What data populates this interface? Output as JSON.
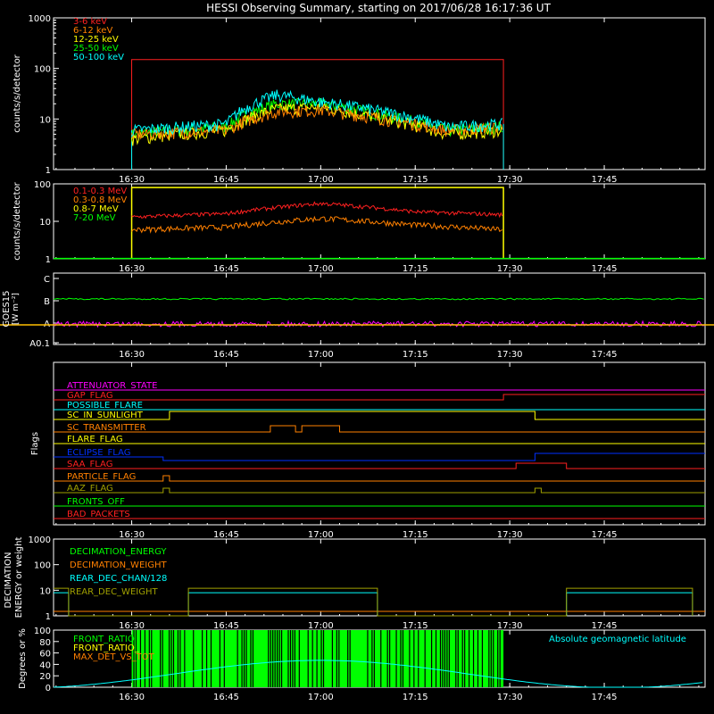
{
  "title": "HESSI Observing Summary, starting on 2017/06/28 16:17:36 UT",
  "time_ticks": [
    "16:30",
    "16:45",
    "17:00",
    "17:15",
    "17:30",
    "17:45"
  ],
  "colors": {
    "red": "#ff2020",
    "orange": "#ff8000",
    "yellow": "#ffff00",
    "green": "#00ff00",
    "cyan": "#00ffff",
    "magenta": "#ff00ff",
    "blue": "#0030ff",
    "olive": "#a0a000",
    "white": "#ffffff"
  },
  "chart_data": [
    {
      "type": "line",
      "panel": "low-energy-rates",
      "ylabel": "counts/s/detector",
      "y_scale": "log",
      "ylim": [
        1,
        1000
      ],
      "y_ticks": [
        "1",
        "10",
        "100",
        "1000"
      ],
      "legend_placement": "top-left",
      "series": [
        {
          "name": "3-6 keV",
          "color": "#ff2020",
          "x": [
            "16:29",
            "16:30",
            "17:00",
            "17:29",
            "17:29"
          ],
          "values": [
            1,
            150,
            150,
            150,
            1
          ]
        },
        {
          "name": "6-12 keV",
          "color": "#ff8000",
          "x": [
            "16:30",
            "16:45",
            "16:53",
            "17:00",
            "17:10",
            "17:20",
            "17:29"
          ],
          "values": [
            5,
            6,
            14,
            15,
            10,
            6,
            7
          ]
        },
        {
          "name": "12-25 keV",
          "color": "#ffff00",
          "x": [
            "16:30",
            "16:45",
            "16:53",
            "17:00",
            "17:10",
            "17:20",
            "17:29"
          ],
          "values": [
            4,
            6,
            16,
            17,
            10,
            5,
            6
          ]
        },
        {
          "name": "25-50 keV",
          "color": "#00ff00",
          "x": [
            "16:30",
            "16:45",
            "16:53",
            "17:00",
            "17:10",
            "17:20",
            "17:29"
          ],
          "values": [
            5,
            7,
            20,
            20,
            12,
            6,
            7
          ]
        },
        {
          "name": "50-100 keV",
          "color": "#00ffff",
          "x": [
            "16:30",
            "16:45",
            "16:53",
            "17:00",
            "17:10",
            "17:20",
            "17:29"
          ],
          "values": [
            6,
            8,
            30,
            22,
            14,
            7,
            8
          ]
        }
      ]
    },
    {
      "type": "line",
      "panel": "high-energy-rates",
      "ylabel": "counts/s/detector",
      "y_scale": "log",
      "ylim": [
        1,
        100
      ],
      "y_ticks": [
        "1",
        "10",
        "100"
      ],
      "legend_placement": "top-left",
      "series": [
        {
          "name": "0.1-0.3 MeV",
          "color": "#ff2020",
          "x": [
            "16:30",
            "16:45",
            "17:00",
            "17:15",
            "17:29"
          ],
          "values": [
            13,
            16,
            30,
            18,
            15
          ]
        },
        {
          "name": "0.3-0.8 MeV",
          "color": "#ff8000",
          "x": [
            "16:30",
            "16:45",
            "17:00",
            "17:15",
            "17:29"
          ],
          "values": [
            6,
            7,
            12,
            8,
            6
          ]
        },
        {
          "name": "0.8-7 MeV",
          "color": "#ffff00",
          "x": [
            "16:29",
            "16:30",
            "17:00",
            "17:29",
            "17:29"
          ],
          "values": [
            1,
            80,
            80,
            80,
            1
          ]
        },
        {
          "name": "7-20 MeV",
          "color": "#00ff00",
          "x": [
            "16:17",
            "18:00"
          ],
          "values": [
            1,
            1
          ]
        }
      ]
    },
    {
      "type": "line",
      "panel": "goes",
      "ylabel": "GOES15 [W m^-2]",
      "y_ticks": [
        "A0.1",
        "A",
        "B",
        "C"
      ],
      "series": [
        {
          "name": "GOES long",
          "color": "#00ff00",
          "level": "B"
        },
        {
          "name": "GOES short",
          "color": "#ff00ff",
          "level": "A"
        }
      ]
    },
    {
      "type": "line",
      "panel": "flags",
      "ylabel": "Flags",
      "series": [
        {
          "name": "ATTENUATOR_STATE",
          "color": "#ff00ff"
        },
        {
          "name": "GAP_FLAG",
          "color": "#ff2020"
        },
        {
          "name": "POSSIBLE_FLARE",
          "color": "#00ffff"
        },
        {
          "name": "SC_IN_SUNLIGHT",
          "color": "#ffff00"
        },
        {
          "name": "SC_TRANSMITTER",
          "color": "#ff8000"
        },
        {
          "name": "FLARE_FLAG",
          "color": "#ffff00"
        },
        {
          "name": "ECLIPSE_FLAG",
          "color": "#0030ff"
        },
        {
          "name": "SAA_FLAG",
          "color": "#ff2020"
        },
        {
          "name": "PARTICLE_FLAG",
          "color": "#ff8000"
        },
        {
          "name": "AAZ_FLAG",
          "color": "#a0a000"
        },
        {
          "name": "FRONTS_OFF",
          "color": "#00ff00"
        },
        {
          "name": "BAD_PACKETS",
          "color": "#ff2020"
        }
      ]
    },
    {
      "type": "line",
      "panel": "decimation",
      "ylabel": "DECIMATION ENERGY or weight",
      "y_scale": "log",
      "ylim": [
        1,
        1000
      ],
      "y_ticks": [
        "1",
        "10",
        "100",
        "1000"
      ],
      "legend_placement": "top-left",
      "series": [
        {
          "name": "DECIMATION_ENERGY",
          "color": "#00ff00"
        },
        {
          "name": "DECIMATION_WEIGHT",
          "color": "#ff8000"
        },
        {
          "name": "REAR_DEC_CHAN/128",
          "color": "#00ffff"
        },
        {
          "name": "REAR_DEC_WEIGHT",
          "color": "#a0a000"
        }
      ]
    },
    {
      "type": "line",
      "panel": "ratios",
      "ylabel": "Degrees or %",
      "ylim": [
        0,
        100
      ],
      "y_ticks": [
        "0",
        "20",
        "40",
        "60",
        "80",
        "100"
      ],
      "legend_placement": "top-left",
      "series": [
        {
          "name": "FRONT_RATIO",
          "color": "#00ff00"
        },
        {
          "name": "FRONT_RATIO_",
          "color": "#ffff00"
        },
        {
          "name": "MAX_DET_VS_TOT",
          "color": "#ff8000"
        },
        {
          "name": "Absolute geomagnetic latitude",
          "color": "#00ffff"
        }
      ]
    }
  ]
}
